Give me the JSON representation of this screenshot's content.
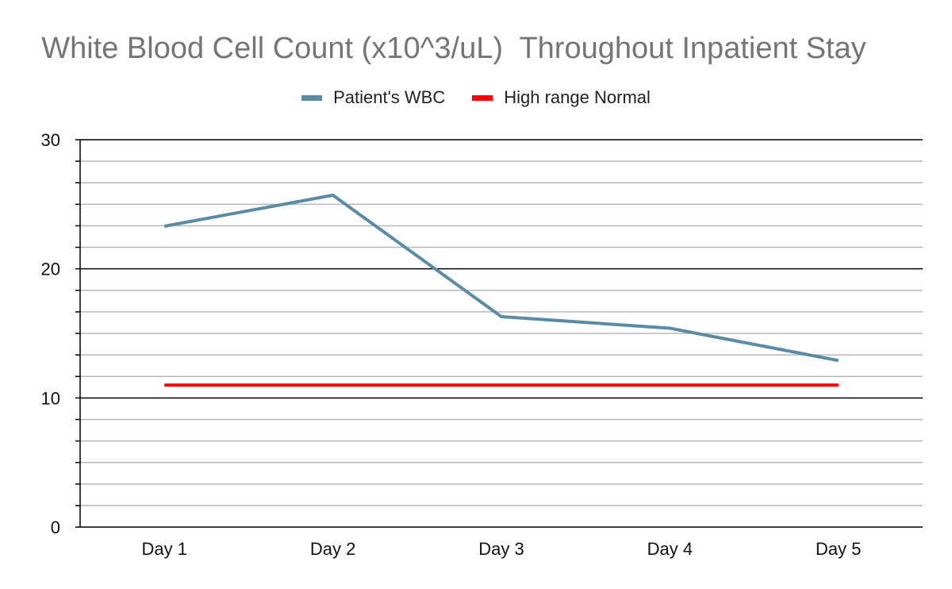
{
  "chart_data": {
    "type": "line",
    "title": "White Blood Cell Count (x10^3/uL)  Throughout Inpatient Stay",
    "categories": [
      "Day 1",
      "Day 2",
      "Day 3",
      "Day 4",
      "Day 5"
    ],
    "series": [
      {
        "name": "Patient's WBC",
        "color": "#5b8ba4",
        "values": [
          23.3,
          25.7,
          16.3,
          15.4,
          12.9
        ]
      },
      {
        "name": "High range Normal",
        "color": "#ff0000",
        "values": [
          11,
          11,
          11,
          11,
          11
        ]
      }
    ],
    "ylim": [
      0,
      30
    ],
    "yticks": [
      "0",
      "10",
      "20",
      "30"
    ],
    "grid": true,
    "legend_position": "top"
  }
}
